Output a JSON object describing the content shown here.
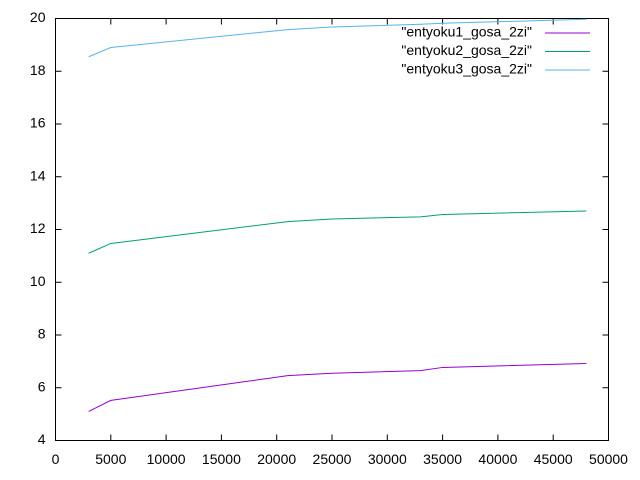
{
  "chart_data": {
    "type": "line",
    "x": [
      3000,
      5000,
      21000,
      25000,
      33000,
      35000,
      48000
    ],
    "series": [
      {
        "name": "\"entyoku1_gosa_2zi\"",
        "color": "#9400d3",
        "values": [
          5.1,
          5.52,
          6.46,
          6.55,
          6.65,
          6.77,
          6.92
        ]
      },
      {
        "name": "\"entyoku2_gosa_2zi\"",
        "color": "#009e73",
        "values": [
          11.1,
          11.47,
          12.3,
          12.4,
          12.48,
          12.57,
          12.7
        ]
      },
      {
        "name": "\"entyoku3_gosa_2zi\"",
        "color": "#56b4e9",
        "values": [
          18.55,
          18.9,
          19.58,
          19.68,
          19.78,
          19.82,
          19.97
        ]
      }
    ],
    "xlim": [
      0,
      50000
    ],
    "xticks": [
      0,
      5000,
      10000,
      15000,
      20000,
      25000,
      30000,
      35000,
      40000,
      45000,
      50000
    ],
    "ylim": [
      4,
      20
    ],
    "yticks": [
      4,
      6,
      8,
      10,
      12,
      14,
      16,
      18,
      20
    ],
    "legend": "top-right",
    "grid": false
  }
}
